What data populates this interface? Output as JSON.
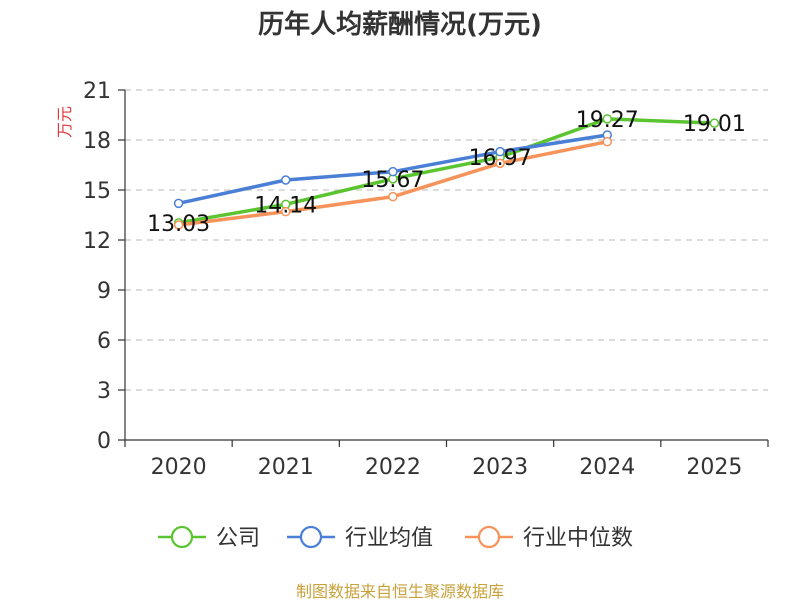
{
  "chart_data": {
    "type": "line",
    "title": "历年人均薪酬情况(万元)",
    "ylabel": "万元",
    "xlabel": "",
    "categories": [
      "2020",
      "2021",
      "2022",
      "2023",
      "2024",
      "2025"
    ],
    "ylim": [
      0,
      21
    ],
    "yticks": [
      0,
      3,
      6,
      9,
      12,
      15,
      18,
      21
    ],
    "grid": true,
    "legend_position": "bottom",
    "series": [
      {
        "name": "公司",
        "color": "#5bc431",
        "values": [
          13.03,
          14.14,
          15.67,
          16.97,
          19.27,
          19.01
        ],
        "labels": [
          "13.03",
          "14.14",
          "15.67",
          "16.97",
          "19.27",
          "19.01"
        ]
      },
      {
        "name": "行业均值",
        "color": "#4a7fd6",
        "values": [
          14.2,
          15.6,
          16.1,
          17.3,
          18.3,
          null
        ]
      },
      {
        "name": "行业中位数",
        "color": "#f5935a",
        "values": [
          12.9,
          13.7,
          14.6,
          16.6,
          17.9,
          null
        ]
      }
    ]
  },
  "source_text": "制图数据来自恒生聚源数据库"
}
